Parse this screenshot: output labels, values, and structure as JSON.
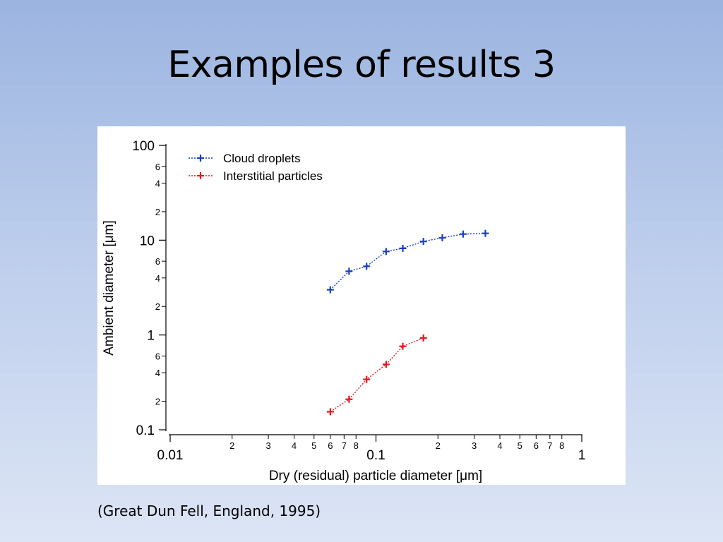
{
  "slide": {
    "title": "Examples of results 3",
    "caption": "(Great Dun Fell, England, 1995)"
  },
  "chart_data": {
    "type": "scatter",
    "xlabel": "Dry (residual) particle diameter [μm]",
    "ylabel": "Ambient diameter [μm]",
    "x_scale": "log",
    "y_scale": "log",
    "xlim": [
      0.01,
      1
    ],
    "ylim": [
      0.1,
      100
    ],
    "x_major_ticks": [
      {
        "value": 0.01,
        "label": "0.01"
      },
      {
        "value": 0.1,
        "label": "0.1"
      },
      {
        "value": 1,
        "label": "1"
      }
    ],
    "x_minor_ticks": [
      {
        "value": 0.02,
        "label": "2"
      },
      {
        "value": 0.03,
        "label": "3"
      },
      {
        "value": 0.04,
        "label": "4"
      },
      {
        "value": 0.05,
        "label": "5"
      },
      {
        "value": 0.06,
        "label": "6"
      },
      {
        "value": 0.07,
        "label": "7"
      },
      {
        "value": 0.08,
        "label": "8"
      },
      {
        "value": 0.2,
        "label": "2"
      },
      {
        "value": 0.3,
        "label": "3"
      },
      {
        "value": 0.4,
        "label": "4"
      },
      {
        "value": 0.5,
        "label": "5"
      },
      {
        "value": 0.6,
        "label": "6"
      },
      {
        "value": 0.7,
        "label": "7"
      },
      {
        "value": 0.8,
        "label": "8"
      }
    ],
    "y_major_ticks": [
      {
        "value": 0.1,
        "label": "0.1"
      },
      {
        "value": 1,
        "label": "1"
      },
      {
        "value": 10,
        "label": "10"
      },
      {
        "value": 100,
        "label": "100"
      }
    ],
    "y_minor_ticks": [
      {
        "value": 0.2,
        "label": "2"
      },
      {
        "value": 0.4,
        "label": "4"
      },
      {
        "value": 0.6,
        "label": "6"
      },
      {
        "value": 2,
        "label": "2"
      },
      {
        "value": 4,
        "label": "4"
      },
      {
        "value": 6,
        "label": "6"
      },
      {
        "value": 20,
        "label": "2"
      },
      {
        "value": 40,
        "label": "4"
      },
      {
        "value": 60,
        "label": "6"
      }
    ],
    "legend_position": "top-left",
    "series": [
      {
        "name": "Cloud droplets",
        "color": "#1a3fbf",
        "x": [
          0.06,
          0.074,
          0.09,
          0.112,
          0.135,
          0.17,
          0.21,
          0.265,
          0.34
        ],
        "y": [
          3.0,
          4.7,
          5.3,
          7.6,
          8.2,
          9.7,
          10.6,
          11.6,
          11.8
        ]
      },
      {
        "name": "Interstitial particles",
        "color": "#e8171c",
        "x": [
          0.06,
          0.074,
          0.09,
          0.112,
          0.135,
          0.17
        ],
        "y": [
          0.155,
          0.21,
          0.34,
          0.49,
          0.76,
          0.93
        ]
      }
    ]
  }
}
